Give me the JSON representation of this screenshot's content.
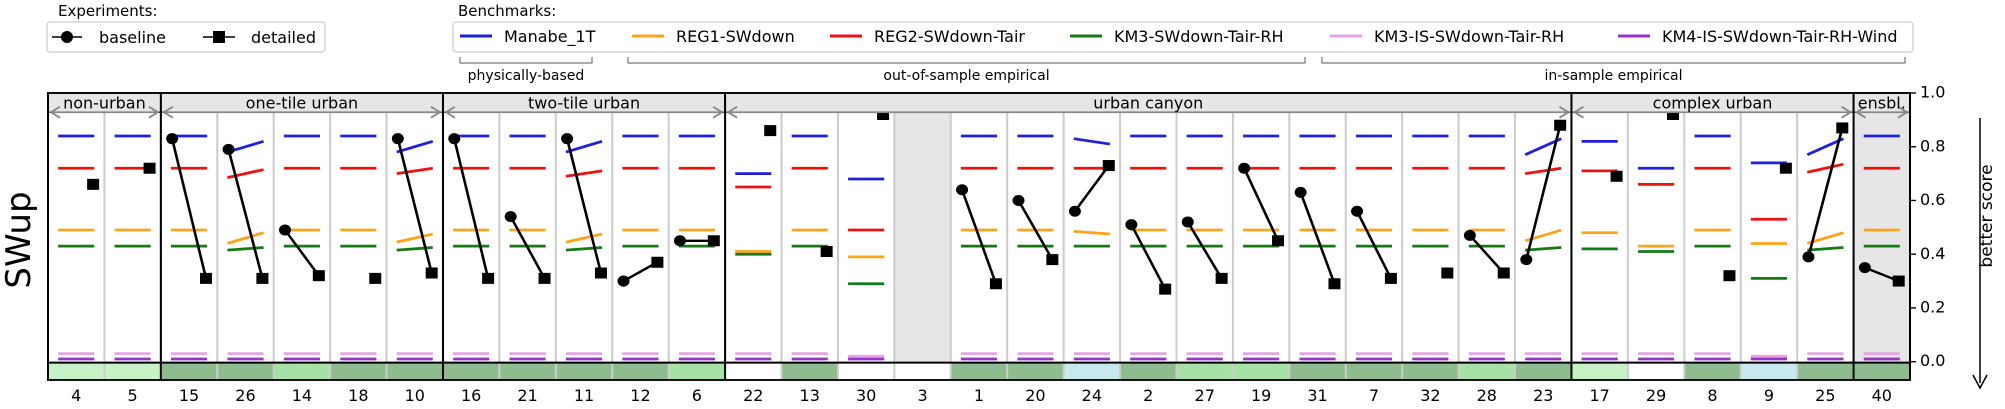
{
  "chart_data": {
    "type": "line",
    "ylabel": "SWup",
    "right_label": "better score",
    "ylim": [
      0,
      1
    ],
    "yticks": [
      "0.0",
      "0.2",
      "0.4",
      "0.6",
      "0.8",
      "1.0"
    ],
    "experiments_title": "Experiments:",
    "experiments": [
      {
        "name": "baseline",
        "marker": "circle"
      },
      {
        "name": "detailed",
        "marker": "square"
      }
    ],
    "benchmarks_title": "Benchmarks:",
    "benchmarks": [
      {
        "name": "Manabe_1T",
        "color": "#1f1fe0"
      },
      {
        "name": "REG1-SWdown",
        "color": "#ffa31a"
      },
      {
        "name": "REG2-SWdown-Tair",
        "color": "#ee1111"
      },
      {
        "name": "KM3-SWdown-Tair-RH",
        "color": "#157a15"
      },
      {
        "name": "KM3-IS-SWdown-Tair-RH",
        "color": "#e6a3e6"
      },
      {
        "name": "KM4-IS-SWdown-Tair-RH-Wind",
        "color": "#9932cc"
      }
    ],
    "benchmark_groups": [
      "physically-based",
      "out-of-sample empirical",
      "in-sample empirical"
    ],
    "groups": [
      {
        "label": "non-urban",
        "count": 2
      },
      {
        "label": "one-tile urban",
        "count": 5
      },
      {
        "label": "two-tile urban",
        "count": 5
      },
      {
        "label": "urban canyon",
        "count": 15
      },
      {
        "label": "complex urban",
        "count": 5
      },
      {
        "label": "ensbl.",
        "count": 1
      }
    ],
    "sites": [
      {
        "id": "4",
        "baseline": null,
        "detailed": 0.66,
        "bench": [
          0.84,
          0.49,
          0.72,
          0.43,
          0.03,
          0.01
        ],
        "tilt": [
          0,
          0,
          0,
          0,
          0,
          0
        ],
        "grey": false,
        "strip": "#c6f2c6"
      },
      {
        "id": "5",
        "baseline": null,
        "detailed": 0.72,
        "bench": [
          0.84,
          0.49,
          0.72,
          0.43,
          0.03,
          0.01
        ],
        "tilt": [
          0,
          0,
          0,
          0,
          0,
          0
        ],
        "grey": false,
        "strip": "#c6f2c6"
      },
      {
        "id": "15",
        "baseline": 0.83,
        "detailed": 0.31,
        "bench": [
          0.84,
          0.49,
          0.72,
          0.43,
          0.03,
          0.01
        ],
        "tilt": [
          0,
          0,
          0,
          0,
          0,
          0
        ],
        "grey": false,
        "strip": "#8fbc8f"
      },
      {
        "id": "26",
        "baseline": 0.79,
        "detailed": 0.31,
        "bench": [
          0.8,
          0.46,
          0.7,
          0.42,
          0.03,
          0.01
        ],
        "tilt": [
          0.04,
          0.04,
          0.03,
          0.01,
          0,
          0
        ],
        "grey": false,
        "strip": "#8fbc8f"
      },
      {
        "id": "14",
        "baseline": 0.49,
        "detailed": 0.32,
        "bench": [
          0.84,
          0.49,
          0.72,
          0.43,
          0.03,
          0.01
        ],
        "tilt": [
          0,
          0,
          0,
          0,
          0,
          0
        ],
        "grey": false,
        "strip": "#a6e2a6"
      },
      {
        "id": "18",
        "baseline": null,
        "detailed": 0.31,
        "bench": [
          0.84,
          0.49,
          0.72,
          0.43,
          0.03,
          0.01
        ],
        "tilt": [
          0,
          0,
          0,
          0,
          0,
          0
        ],
        "grey": false,
        "strip": "#8fbc8f"
      },
      {
        "id": "10",
        "baseline": 0.83,
        "detailed": 0.33,
        "bench": [
          0.8,
          0.46,
          0.71,
          0.42,
          0.03,
          0.01
        ],
        "tilt": [
          0.04,
          0.03,
          0.02,
          0.01,
          0,
          0
        ],
        "grey": false,
        "strip": "#8fbc8f"
      },
      {
        "id": "16",
        "baseline": 0.83,
        "detailed": 0.31,
        "bench": [
          0.84,
          0.49,
          0.72,
          0.43,
          0.03,
          0.01
        ],
        "tilt": [
          0,
          0,
          0,
          0,
          0,
          0
        ],
        "grey": false,
        "strip": "#8fbc8f"
      },
      {
        "id": "21",
        "baseline": 0.54,
        "detailed": 0.31,
        "bench": [
          0.84,
          0.49,
          0.72,
          0.43,
          0.03,
          0.01
        ],
        "tilt": [
          0,
          0,
          0,
          0,
          0,
          0
        ],
        "grey": false,
        "strip": "#8fbc8f"
      },
      {
        "id": "11",
        "baseline": 0.83,
        "detailed": 0.33,
        "bench": [
          0.8,
          0.46,
          0.7,
          0.42,
          0.03,
          0.01
        ],
        "tilt": [
          0.04,
          0.03,
          0.02,
          0.01,
          0,
          0
        ],
        "grey": false,
        "strip": "#8fbc8f"
      },
      {
        "id": "12",
        "baseline": 0.3,
        "detailed": 0.37,
        "bench": [
          0.84,
          0.49,
          0.72,
          0.43,
          0.03,
          0.01
        ],
        "tilt": [
          0,
          0,
          0,
          0,
          0,
          0
        ],
        "grey": false,
        "strip": "#8fbc8f"
      },
      {
        "id": "6",
        "baseline": 0.45,
        "detailed": 0.45,
        "bench": [
          0.84,
          0.49,
          0.72,
          0.43,
          0.03,
          0.01
        ],
        "tilt": [
          0,
          0,
          0,
          0,
          0,
          0
        ],
        "grey": false,
        "strip": "#a6e2a6"
      },
      {
        "id": "22",
        "baseline": null,
        "detailed": 0.86,
        "bench": [
          0.7,
          0.41,
          0.65,
          0.4,
          0.03,
          0.01
        ],
        "tilt": [
          0,
          0,
          0,
          0,
          0,
          0
        ],
        "grey": false,
        "strip": "#ffffff"
      },
      {
        "id": "13",
        "baseline": null,
        "detailed": 0.41,
        "bench": [
          0.84,
          0.49,
          0.72,
          0.43,
          0.03,
          0.01
        ],
        "tilt": [
          0,
          0,
          0,
          0,
          0,
          0
        ],
        "grey": false,
        "strip": "#8fbc8f"
      },
      {
        "id": "30",
        "baseline": null,
        "detailed": 0.92,
        "bench": [
          0.68,
          0.39,
          0.49,
          0.29,
          0.02,
          0.01
        ],
        "tilt": [
          0,
          0,
          0,
          0,
          0,
          0
        ],
        "grey": false,
        "strip": "#ffffff"
      },
      {
        "id": "3",
        "baseline": null,
        "detailed": null,
        "bench": [],
        "tilt": [],
        "grey": true,
        "strip": "#ffffff"
      },
      {
        "id": "1",
        "baseline": 0.64,
        "detailed": 0.29,
        "bench": [
          0.84,
          0.49,
          0.72,
          0.43,
          0.03,
          0.01
        ],
        "tilt": [
          0,
          0,
          0,
          0,
          0,
          0
        ],
        "grey": false,
        "strip": "#8fbc8f"
      },
      {
        "id": "20",
        "baseline": 0.6,
        "detailed": 0.38,
        "bench": [
          0.84,
          0.49,
          0.72,
          0.43,
          0.03,
          0.01
        ],
        "tilt": [
          0,
          0,
          0,
          0,
          0,
          0
        ],
        "grey": false,
        "strip": "#8fbc8f"
      },
      {
        "id": "24",
        "baseline": 0.56,
        "detailed": 0.73,
        "bench": [
          0.82,
          0.48,
          0.72,
          0.43,
          0.03,
          0.01
        ],
        "tilt": [
          -0.02,
          -0.01,
          0,
          0,
          0,
          0
        ],
        "grey": false,
        "strip": "#c8e8f0"
      },
      {
        "id": "2",
        "baseline": 0.51,
        "detailed": 0.27,
        "bench": [
          0.84,
          0.49,
          0.72,
          0.43,
          0.03,
          0.01
        ],
        "tilt": [
          0,
          0,
          0,
          0,
          0,
          0
        ],
        "grey": false,
        "strip": "#8fbc8f"
      },
      {
        "id": "27",
        "baseline": 0.52,
        "detailed": 0.31,
        "bench": [
          0.84,
          0.49,
          0.72,
          0.43,
          0.03,
          0.01
        ],
        "tilt": [
          0,
          0,
          0,
          0,
          0,
          0
        ],
        "grey": false,
        "strip": "#a6e2a6"
      },
      {
        "id": "19",
        "baseline": 0.72,
        "detailed": 0.45,
        "bench": [
          0.84,
          0.49,
          0.72,
          0.43,
          0.03,
          0.01
        ],
        "tilt": [
          0,
          0,
          0,
          0,
          0,
          0
        ],
        "grey": false,
        "strip": "#a6e2a6"
      },
      {
        "id": "31",
        "baseline": 0.63,
        "detailed": 0.29,
        "bench": [
          0.84,
          0.49,
          0.72,
          0.43,
          0.03,
          0.01
        ],
        "tilt": [
          0,
          0,
          0,
          0,
          0,
          0
        ],
        "grey": false,
        "strip": "#8fbc8f"
      },
      {
        "id": "7",
        "baseline": 0.56,
        "detailed": 0.31,
        "bench": [
          0.84,
          0.49,
          0.72,
          0.43,
          0.03,
          0.01
        ],
        "tilt": [
          0,
          0,
          0,
          0,
          0,
          0
        ],
        "grey": false,
        "strip": "#8fbc8f"
      },
      {
        "id": "32",
        "baseline": null,
        "detailed": 0.33,
        "bench": [
          0.84,
          0.49,
          0.72,
          0.43,
          0.03,
          0.01
        ],
        "tilt": [
          0,
          0,
          0,
          0,
          0,
          0
        ],
        "grey": false,
        "strip": "#8fbc8f"
      },
      {
        "id": "28",
        "baseline": 0.47,
        "detailed": 0.33,
        "bench": [
          0.84,
          0.49,
          0.72,
          0.43,
          0.03,
          0.01
        ],
        "tilt": [
          0,
          0,
          0,
          0,
          0,
          0
        ],
        "grey": false,
        "strip": "#a6e2a6"
      },
      {
        "id": "23",
        "baseline": 0.38,
        "detailed": 0.88,
        "bench": [
          0.8,
          0.47,
          0.71,
          0.42,
          0.03,
          0.01
        ],
        "tilt": [
          0.06,
          0.04,
          0.02,
          0.01,
          0,
          0
        ],
        "grey": false,
        "strip": "#8fbc8f"
      },
      {
        "id": "17",
        "baseline": null,
        "detailed": 0.69,
        "bench": [
          0.82,
          0.48,
          0.71,
          0.42,
          0.03,
          0.01
        ],
        "tilt": [
          0,
          0,
          0,
          0,
          0,
          0
        ],
        "grey": false,
        "strip": "#c6f2c6"
      },
      {
        "id": "29",
        "baseline": null,
        "detailed": 0.92,
        "bench": [
          0.72,
          0.43,
          0.66,
          0.41,
          0.03,
          0.01
        ],
        "tilt": [
          0,
          0,
          0,
          0,
          0,
          0
        ],
        "grey": false,
        "strip": "#ffffff"
      },
      {
        "id": "8",
        "baseline": null,
        "detailed": 0.32,
        "bench": [
          0.84,
          0.49,
          0.72,
          0.43,
          0.03,
          0.01
        ],
        "tilt": [
          0,
          0,
          0,
          0,
          0,
          0
        ],
        "grey": false,
        "strip": "#8fbc8f"
      },
      {
        "id": "9",
        "baseline": null,
        "detailed": 0.72,
        "bench": [
          0.74,
          0.44,
          0.53,
          0.31,
          0.02,
          0.01
        ],
        "tilt": [
          0,
          0,
          0,
          0,
          0,
          0
        ],
        "grey": false,
        "strip": "#c8e8f0"
      },
      {
        "id": "25",
        "baseline": 0.39,
        "detailed": 0.87,
        "bench": [
          0.8,
          0.46,
          0.72,
          0.42,
          0.03,
          0.01
        ],
        "tilt": [
          0.06,
          0.04,
          0.03,
          0.01,
          0,
          0
        ],
        "grey": false,
        "strip": "#8fbc8f"
      },
      {
        "id": "40",
        "baseline": 0.35,
        "detailed": 0.3,
        "bench": [
          0.84,
          0.49,
          0.72,
          0.43,
          0.03,
          0.01
        ],
        "tilt": [
          0,
          0,
          0,
          0,
          0,
          0
        ],
        "grey": true,
        "strip": "#8fbc8f"
      }
    ]
  }
}
